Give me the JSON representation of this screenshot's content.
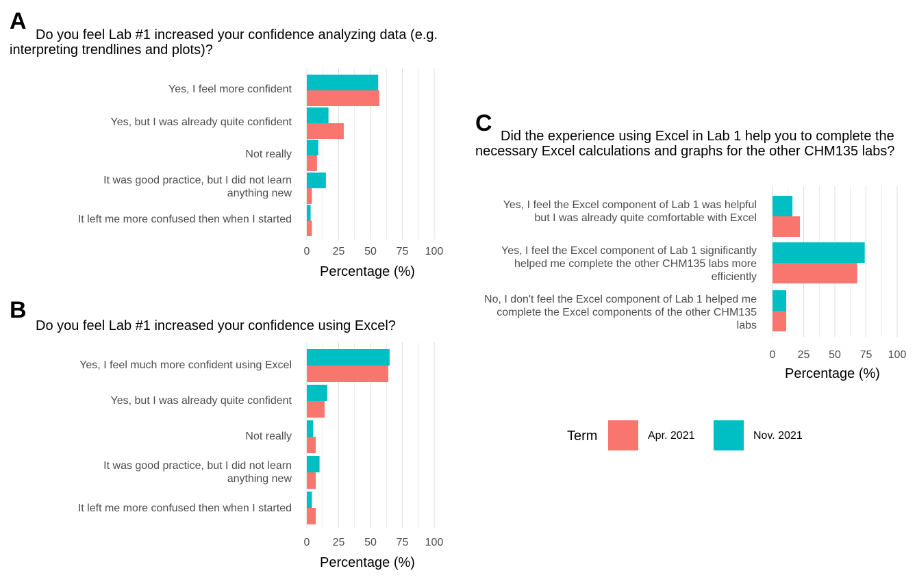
{
  "colors": {
    "apr": "#F8766D",
    "nov": "#00BFC4",
    "grid": "#dcdcdc"
  },
  "legend": {
    "title": "Term",
    "items": [
      {
        "label": "Apr. 2021",
        "key": "apr"
      },
      {
        "label": "Nov. 2021",
        "key": "nov"
      }
    ]
  },
  "chart_data": [
    {
      "panel": "A",
      "type": "bar",
      "orientation": "horizontal",
      "title": "Do you feel Lab #1 increased your confidence analyzing data (e.g. interpreting trendlines and plots)?",
      "xlabel": "Percentage (%)",
      "xlim": [
        0,
        100
      ],
      "ticks": [
        "0",
        "25",
        "50",
        "75",
        "100"
      ],
      "categories": [
        "Yes, I feel more confident",
        "Yes, but I was already quite confident",
        "Not really",
        "It was good practice, but I did not learn anything new",
        "It left me more confused then when I started"
      ],
      "series": [
        {
          "name": "Nov. 2021",
          "key": "nov",
          "values": [
            56,
            17,
            9,
            15,
            3
          ]
        },
        {
          "name": "Apr. 2021",
          "key": "apr",
          "values": [
            57,
            29,
            8,
            4,
            4
          ]
        }
      ]
    },
    {
      "panel": "B",
      "type": "bar",
      "orientation": "horizontal",
      "title": "Do you feel Lab #1 increased your confidence using Excel?",
      "xlabel": "Percentage (%)",
      "xlim": [
        0,
        100
      ],
      "ticks": [
        "0",
        "25",
        "50",
        "75",
        "100"
      ],
      "categories": [
        "Yes, I feel much more confident using Excel",
        "Yes, but I was already quite confident",
        "Not really",
        "It was good practice, but I did not learn anything new",
        "It left me more confused then when I started"
      ],
      "series": [
        {
          "name": "Nov. 2021",
          "key": "nov",
          "values": [
            65,
            16,
            5,
            10,
            4
          ]
        },
        {
          "name": "Apr. 2021",
          "key": "apr",
          "values": [
            64,
            14,
            7,
            7,
            7
          ]
        }
      ]
    },
    {
      "panel": "C",
      "type": "bar",
      "orientation": "horizontal",
      "title": "Did the experience using Excel in Lab 1 help you to complete the necessary Excel calculations and graphs for the other CHM135 labs?",
      "xlabel": "Percentage (%)",
      "xlim": [
        0,
        100
      ],
      "ticks": [
        "0",
        "25",
        "50",
        "75",
        "100"
      ],
      "categories": [
        "Yes, I feel the Excel component of Lab 1 was helpful but I was already quite comfortable with Excel",
        "Yes, I feel the Excel component of Lab 1 significantly helped me complete the other CHM135 labs more efficiently",
        "No, I don't feel the Excel component of Lab 1 helped me complete the Excel components of the other CHM135 labs"
      ],
      "series": [
        {
          "name": "Nov. 2021",
          "key": "nov",
          "values": [
            16,
            74,
            11
          ]
        },
        {
          "name": "Apr. 2021",
          "key": "apr",
          "values": [
            22,
            68,
            11
          ]
        }
      ]
    }
  ]
}
